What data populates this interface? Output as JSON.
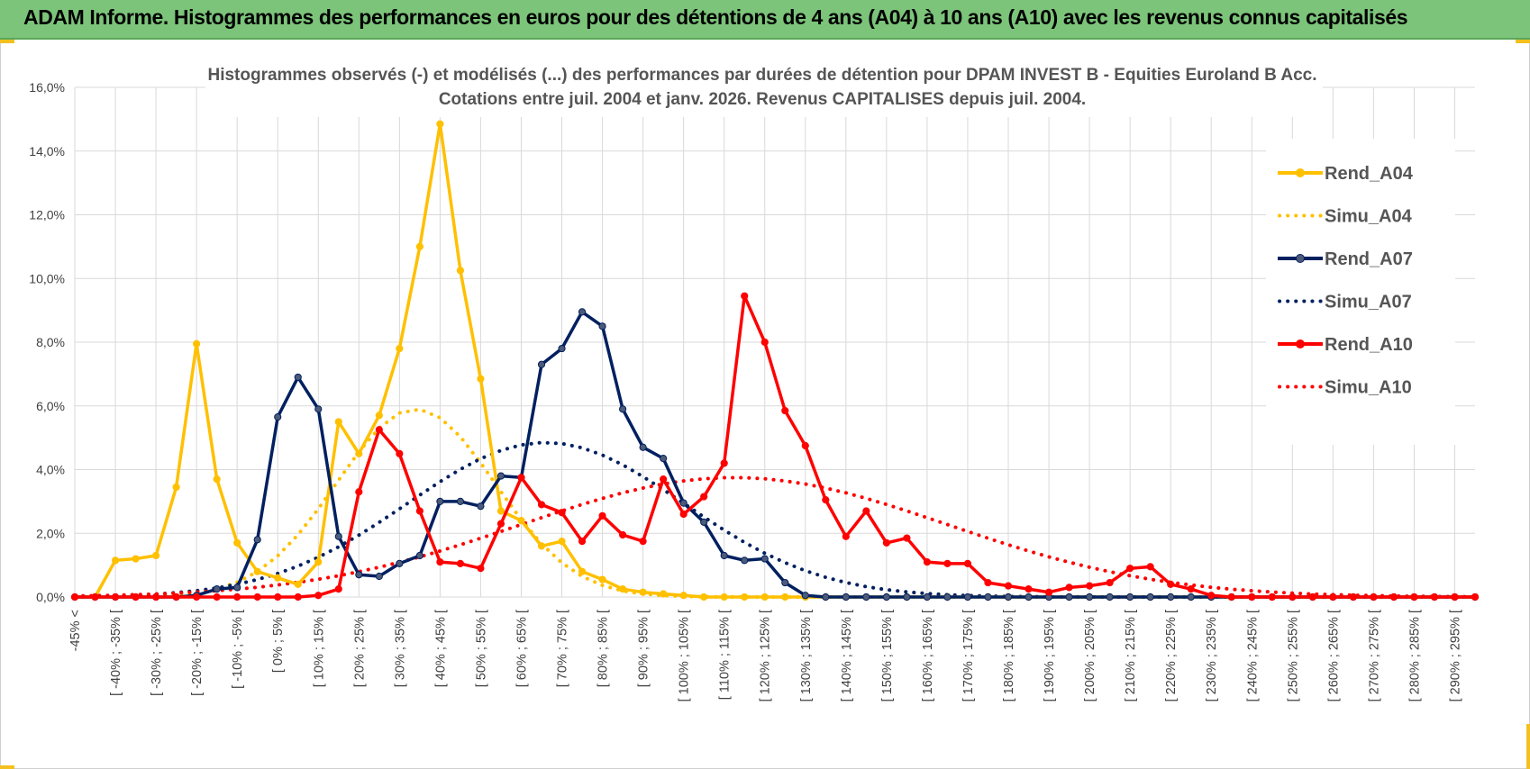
{
  "banner": {
    "title": "ADAM Informe. Histogrammes des performances en euros pour des détentions de 4 ans (A04) à 10 ans (A10) avec les revenus connus capitalisés"
  },
  "colors": {
    "banner_bg": "#7cc47a",
    "a04": "#FFC000",
    "a07": "#002060",
    "a10": "#FF0000",
    "grid": "#d9d9d9"
  },
  "chart_data": {
    "type": "line",
    "title": [
      "Histogrammes observés (-) et modélisés (...) des performances par durées de détention pour DPAM INVEST B - Equities Euroland B Acc.",
      "Cotations entre juil. 2004 et janv. 2026. Revenus CAPITALISES depuis juil. 2004."
    ],
    "ylim": [
      0,
      16
    ],
    "yticks": [
      "0,0%",
      "2,0%",
      "4,0%",
      "6,0%",
      "8,0%",
      "10,0%",
      "12,0%",
      "14,0%",
      "16,0%"
    ],
    "xlabels": [
      "-45% <",
      "[ -40% ; -35% [",
      "[ -30% ; -25% [",
      "[ -20% ; -15% [",
      "[ -10% ; -5% [",
      "[ 0% ; 5% [",
      "[ 10% ; 15% [",
      "[ 20% ; 25% [",
      "[ 30% ; 35% [",
      "[ 40% ; 45% [",
      "[ 50% ; 55% [",
      "[ 60% ; 65% [",
      "[ 70% ; 75% [",
      "[ 80% ; 85% [",
      "[ 90% ; 95% [",
      "[ 100% ; 105% [",
      "[ 110% ; 115% [",
      "[ 120% ; 125% [",
      "[ 130% ; 135% [",
      "[ 140% ; 145% [",
      "[ 150% ; 155% [",
      "[ 160% ; 165% [",
      "[ 170% ; 175% [",
      "[ 180% ; 185% [",
      "[ 190% ; 195% [",
      "[ 200% ; 205% [",
      "[ 210% ; 215% [",
      "[ 220% ; 225% [",
      "[ 230% ; 235% [",
      "[ 240% ; 245% [",
      "[ 250% ; 255% [",
      "[ 260% ; 265% [",
      "[ 270% ; 275% [",
      "[ 280% ; 285% [",
      "[ 290% ; 295% ["
    ],
    "n_points": 70,
    "series": [
      {
        "name": "Rend_A04",
        "style": "solid",
        "color": "#FFC000",
        "values": [
          0,
          0,
          1.15,
          1.2,
          1.3,
          3.45,
          7.95,
          3.7,
          1.7,
          0.8,
          0.6,
          0.4,
          1.1,
          5.5,
          4.5,
          5.7,
          7.8,
          11,
          14.85,
          10.25,
          6.85,
          2.7,
          2.4,
          1.6,
          1.75,
          0.8,
          0.55,
          0.25,
          0.15,
          0.1,
          0.05,
          0,
          0,
          0,
          0,
          0,
          0,
          0,
          0,
          0,
          0,
          0,
          0,
          0,
          0,
          0,
          0,
          0,
          0,
          0,
          0,
          0,
          0,
          0,
          0,
          0,
          0,
          0,
          0,
          0,
          0,
          0,
          0,
          0,
          0,
          0,
          0,
          0,
          0,
          0
        ]
      },
      {
        "name": "Simu_A04",
        "style": "dotted",
        "color": "#FFC000",
        "gaussian": {
          "mu": 16.8,
          "sigma": 3.9,
          "peak": 5.9
        }
      },
      {
        "name": "Rend_A07",
        "style": "solid",
        "color": "#002060",
        "values": [
          0,
          0,
          0,
          0,
          0,
          0,
          0.05,
          0.25,
          0.3,
          1.8,
          5.65,
          6.9,
          5.9,
          1.9,
          0.7,
          0.65,
          1.05,
          1.3,
          3,
          3,
          2.85,
          3.8,
          3.75,
          7.3,
          7.8,
          8.95,
          8.5,
          5.9,
          4.7,
          4.35,
          2.95,
          2.35,
          1.3,
          1.15,
          1.2,
          0.45,
          0.05,
          0,
          0,
          0,
          0,
          0,
          0,
          0,
          0,
          0,
          0,
          0,
          0,
          0,
          0,
          0,
          0,
          0,
          0,
          0,
          0,
          0,
          0,
          0,
          0,
          0,
          0,
          0,
          0,
          0,
          0,
          0,
          0,
          0
        ]
      },
      {
        "name": "Simu_A07",
        "style": "dotted",
        "color": "#002060",
        "gaussian": {
          "mu": 23.2,
          "sigma": 6.8,
          "peak": 4.85
        }
      },
      {
        "name": "Rend_A10",
        "style": "solid",
        "color": "#FF0000",
        "values": [
          0,
          0,
          0,
          0,
          0,
          0,
          0,
          0,
          0,
          0,
          0,
          0,
          0.05,
          0.25,
          3.3,
          5.25,
          4.5,
          2.7,
          1.1,
          1.05,
          0.9,
          2.3,
          3.75,
          2.9,
          2.65,
          1.75,
          2.55,
          1.95,
          1.75,
          3.7,
          2.6,
          3.15,
          4.2,
          9.45,
          8,
          5.85,
          4.75,
          3.05,
          1.9,
          2.7,
          1.7,
          1.85,
          1.1,
          1.05,
          1.05,
          0.45,
          0.35,
          0.25,
          0.15,
          0.3,
          0.35,
          0.45,
          0.9,
          0.95,
          0.4,
          0.25,
          0.05,
          0,
          0,
          0,
          0,
          0,
          0,
          0,
          0,
          0,
          0,
          0,
          0,
          0
        ]
      },
      {
        "name": "Simu_A10",
        "style": "dotted",
        "color": "#FF0000",
        "gaussian": {
          "mu": 32.5,
          "sigma": 10.5,
          "peak": 3.75
        }
      }
    ],
    "legend": [
      "Rend_A04",
      "Simu_A04",
      "Rend_A07",
      "Simu_A07",
      "Rend_A10",
      "Simu_A10"
    ],
    "legend_position": "right"
  }
}
